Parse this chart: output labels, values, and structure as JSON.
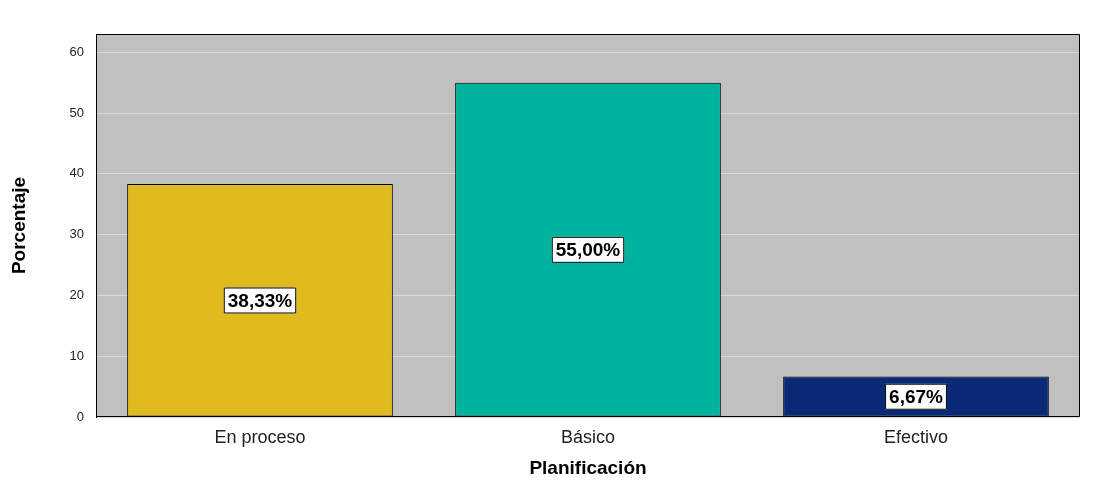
{
  "chart_data": {
    "type": "bar",
    "xlabel": "Planificación",
    "ylabel": "Porcentaje",
    "categories": [
      "En proceso",
      "Básico",
      "Efectivo"
    ],
    "values": [
      38.33,
      55.0,
      6.67
    ],
    "colors": [
      "#e0ba1e",
      "#00b39e",
      "#0a2a78"
    ],
    "value_labels": [
      "38,33%",
      "55,00%",
      "6,67%"
    ],
    "ylim": [
      0,
      63
    ],
    "yticks": [
      0,
      10,
      20,
      30,
      40,
      50,
      60
    ],
    "grid": "y"
  }
}
